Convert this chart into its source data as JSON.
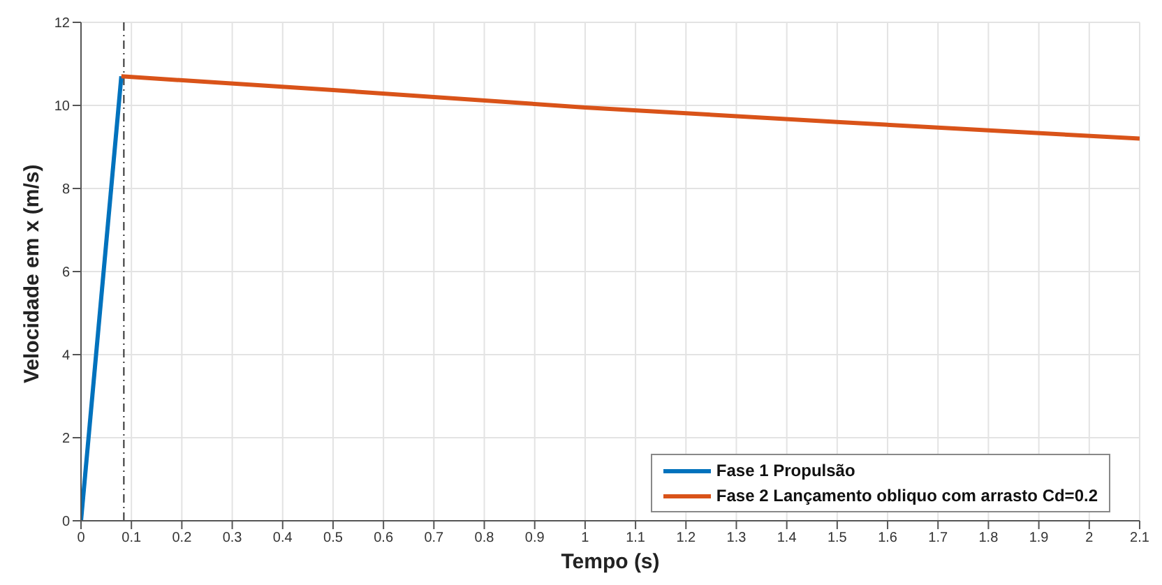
{
  "chart_data": {
    "type": "line",
    "xlabel": "Tempo (s)",
    "ylabel": "Velocidade em x (m/s)",
    "xlim": [
      0,
      2.1
    ],
    "xticks": [
      0,
      0.1,
      0.2,
      0.3,
      0.4,
      0.5,
      0.6,
      0.7,
      0.8,
      0.9,
      1,
      1.1,
      1.2,
      1.3,
      1.4,
      1.5,
      1.6,
      1.7,
      1.8,
      1.9,
      2,
      2.1
    ],
    "ylim": [
      0,
      12
    ],
    "yticks": [
      0,
      2,
      4,
      6,
      8,
      10,
      12
    ],
    "series": [
      {
        "name": "Fase 1 Propulsão",
        "color": "#0072bd",
        "x": [
          0,
          0.08
        ],
        "values": [
          0,
          10.7
        ]
      },
      {
        "name": "Fase 2 Lançamento obliquo com arrasto Cd=0.2",
        "color": "#d95319",
        "x": [
          0.08,
          0.5,
          1,
          1.5,
          2.1
        ],
        "values": [
          10.7,
          10.37,
          9.95,
          9.6,
          9.2
        ]
      }
    ],
    "ref_lines": [
      {
        "axis": "x",
        "value": 0.085,
        "color": "#333333",
        "line_style": "dashed"
      }
    ],
    "grid": true,
    "legend": "bottom right",
    "marker": "none",
    "line_style": "solid"
  }
}
